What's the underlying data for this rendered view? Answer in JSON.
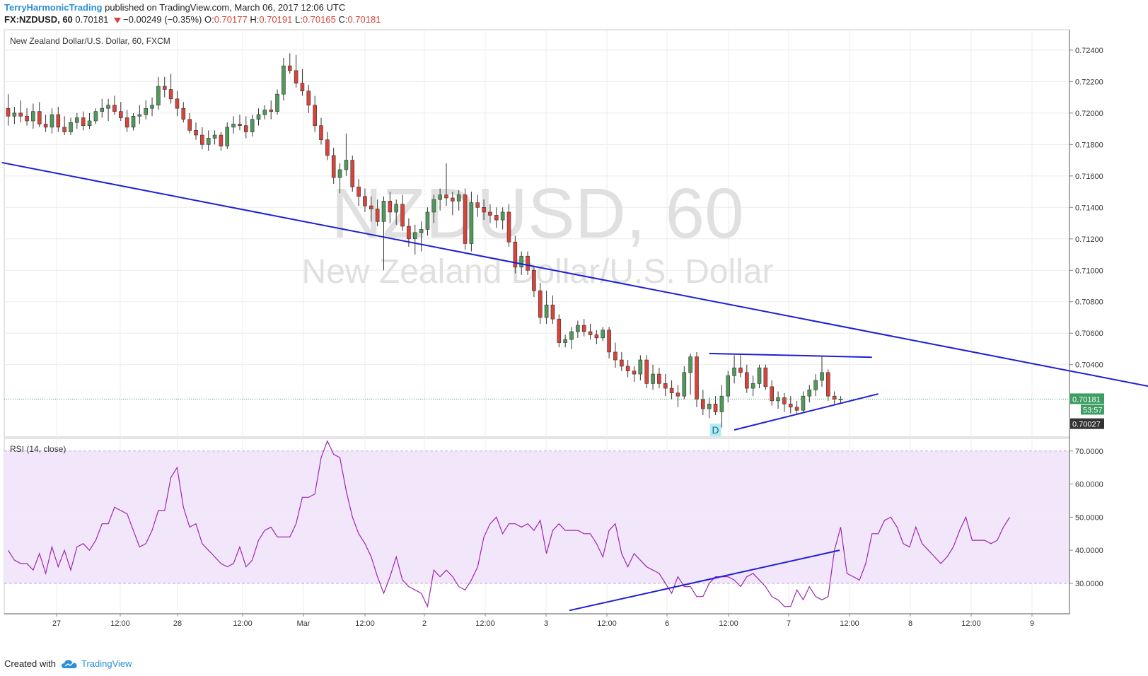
{
  "header": {
    "author": "TerryHarmonicTrading",
    "published": "published on TradingView.com, March 06, 2017 12:06 UTC",
    "symbol": "FX:NZDUSD, 60",
    "last": "0.70181",
    "change": "−0.00249 (−0.35%)",
    "o_label": "O:",
    "o": "0.70177",
    "h_label": "H:",
    "h": "0.70191",
    "l_label": "L:",
    "l": "0.70165",
    "c_label": "C:",
    "c": "0.70181"
  },
  "footer": {
    "created_with": "Created with",
    "brand": "TradingView"
  },
  "icons": {
    "change_direction": "triangle-down-icon",
    "brand_logo": "cloud-icon"
  },
  "colors": {
    "up": "#4f9a5b",
    "down": "#d9433a",
    "trendline": "#1e1ed6",
    "rsi_line": "#9c27b0",
    "rsi_band": "#f2e6fb",
    "current_price": "#3d9e63",
    "watermark": "#e0e0e0"
  },
  "chart_data": [
    {
      "type": "candlestick",
      "title": "New Zealand Dollar/U.S. Dollar, 60, FXCM",
      "watermark": {
        "symbol": "NZDUSD, 60",
        "name": "New Zealand Dollar/U.S. Dollar"
      },
      "ylim": [
        0.6994,
        0.7253
      ],
      "yticks": [
        "0.72400",
        "0.72200",
        "0.72000",
        "0.71800",
        "0.71600",
        "0.71400",
        "0.71200",
        "0.71000",
        "0.70800",
        "0.70600",
        "0.70400"
      ],
      "xtick_labels": [
        "27",
        "12:00",
        "28",
        "12:00",
        "Mar",
        "12:00",
        "2",
        "12:00",
        "3",
        "12:00",
        "6",
        "12:00",
        "7",
        "12:00",
        "8",
        "12:00",
        "9"
      ],
      "current_price": {
        "label": "0.70181",
        "value": 0.70181,
        "countdown": "53:57"
      },
      "marker_price": {
        "label": "0.70027",
        "value": 0.70027
      },
      "annotation": {
        "text": "D",
        "bar": 113
      },
      "trendlines": [
        {
          "name": "descending",
          "from": {
            "bar": -1,
            "price": 0.71685
          },
          "to": {
            "bar": 195,
            "price": 0.70163
          }
        },
        {
          "name": "triangle-top",
          "from": {
            "bar": 112,
            "price": 0.70471
          },
          "to": {
            "bar": 138,
            "price": 0.70447
          }
        },
        {
          "name": "triangle-bottom",
          "from": {
            "bar": 116,
            "price": 0.69985
          },
          "to": {
            "bar": 139,
            "price": 0.70214
          }
        }
      ],
      "ohlc": [
        [
          0.7203,
          0.7212,
          0.7192,
          0.7198
        ],
        [
          0.7198,
          0.7204,
          0.7193,
          0.72
        ],
        [
          0.72,
          0.7208,
          0.7194,
          0.7198
        ],
        [
          0.7198,
          0.7203,
          0.7192,
          0.7195
        ],
        [
          0.7195,
          0.7206,
          0.719,
          0.7201
        ],
        [
          0.7201,
          0.7207,
          0.7191,
          0.7193
        ],
        [
          0.7193,
          0.7199,
          0.7188,
          0.7191
        ],
        [
          0.7191,
          0.7203,
          0.7187,
          0.7199
        ],
        [
          0.7199,
          0.7204,
          0.7188,
          0.7191
        ],
        [
          0.7191,
          0.7198,
          0.7186,
          0.7188
        ],
        [
          0.7188,
          0.7197,
          0.7186,
          0.7194
        ],
        [
          0.7194,
          0.72,
          0.719,
          0.7197
        ],
        [
          0.7197,
          0.7201,
          0.7189,
          0.7192
        ],
        [
          0.7192,
          0.72,
          0.719,
          0.7195
        ],
        [
          0.7195,
          0.7203,
          0.7193,
          0.7201
        ],
        [
          0.7201,
          0.7209,
          0.7197,
          0.7203
        ],
        [
          0.7203,
          0.7209,
          0.7195,
          0.7205
        ],
        [
          0.7205,
          0.7211,
          0.7199,
          0.7201
        ],
        [
          0.7201,
          0.7207,
          0.7195,
          0.7197
        ],
        [
          0.7197,
          0.7202,
          0.7188,
          0.7191
        ],
        [
          0.7191,
          0.72,
          0.7189,
          0.7198
        ],
        [
          0.7198,
          0.7205,
          0.7193,
          0.7199
        ],
        [
          0.7199,
          0.7208,
          0.7196,
          0.7203
        ],
        [
          0.7203,
          0.721,
          0.7198,
          0.7205
        ],
        [
          0.7205,
          0.7223,
          0.7202,
          0.7217
        ],
        [
          0.7217,
          0.7223,
          0.721,
          0.7215
        ],
        [
          0.7215,
          0.7225,
          0.7206,
          0.7209
        ],
        [
          0.7209,
          0.7214,
          0.7198,
          0.7203
        ],
        [
          0.7203,
          0.7207,
          0.7194,
          0.7196
        ],
        [
          0.7196,
          0.72,
          0.7187,
          0.7189
        ],
        [
          0.7189,
          0.7194,
          0.7183,
          0.7186
        ],
        [
          0.7186,
          0.7191,
          0.7177,
          0.718
        ],
        [
          0.718,
          0.7189,
          0.7176,
          0.7184
        ],
        [
          0.7184,
          0.7189,
          0.718,
          0.7186
        ],
        [
          0.7186,
          0.7188,
          0.7176,
          0.7179
        ],
        [
          0.7179,
          0.7194,
          0.7177,
          0.7191
        ],
        [
          0.7191,
          0.7198,
          0.7187,
          0.7193
        ],
        [
          0.7193,
          0.7199,
          0.7189,
          0.7192
        ],
        [
          0.7192,
          0.7198,
          0.7184,
          0.7188
        ],
        [
          0.7188,
          0.7199,
          0.7185,
          0.7196
        ],
        [
          0.7196,
          0.7203,
          0.7192,
          0.7199
        ],
        [
          0.7199,
          0.7205,
          0.7196,
          0.7202
        ],
        [
          0.7202,
          0.7208,
          0.7196,
          0.7201
        ],
        [
          0.7201,
          0.7215,
          0.7199,
          0.7212
        ],
        [
          0.7212,
          0.7235,
          0.7208,
          0.723
        ],
        [
          0.723,
          0.7238,
          0.7225,
          0.7227
        ],
        [
          0.7227,
          0.7237,
          0.7216,
          0.7219
        ],
        [
          0.7219,
          0.7228,
          0.7211,
          0.7214
        ],
        [
          0.7214,
          0.7218,
          0.72,
          0.7205
        ],
        [
          0.7205,
          0.7211,
          0.7188,
          0.7192
        ],
        [
          0.7192,
          0.7197,
          0.718,
          0.7183
        ],
        [
          0.7183,
          0.7188,
          0.717,
          0.7173
        ],
        [
          0.7173,
          0.7178,
          0.7155,
          0.7159
        ],
        [
          0.7159,
          0.7168,
          0.7149,
          0.7164
        ],
        [
          0.7164,
          0.7187,
          0.716,
          0.717
        ],
        [
          0.717,
          0.7173,
          0.715,
          0.7153
        ],
        [
          0.7153,
          0.7158,
          0.7141,
          0.7147
        ],
        [
          0.7147,
          0.7152,
          0.7137,
          0.7141
        ],
        [
          0.7141,
          0.7147,
          0.7131,
          0.7139
        ],
        [
          0.7139,
          0.7145,
          0.7128,
          0.7131
        ],
        [
          0.7131,
          0.7147,
          0.71,
          0.7144
        ],
        [
          0.7144,
          0.715,
          0.713,
          0.7137
        ],
        [
          0.7137,
          0.7145,
          0.7129,
          0.7142
        ],
        [
          0.7142,
          0.7148,
          0.7125,
          0.7128
        ],
        [
          0.7128,
          0.7133,
          0.7115,
          0.712
        ],
        [
          0.712,
          0.7129,
          0.711,
          0.7124
        ],
        [
          0.7124,
          0.7131,
          0.7112,
          0.7126
        ],
        [
          0.7126,
          0.714,
          0.7122,
          0.7137
        ],
        [
          0.7137,
          0.7148,
          0.713,
          0.7145
        ],
        [
          0.7145,
          0.7152,
          0.7138,
          0.7148
        ],
        [
          0.7148,
          0.7168,
          0.7141,
          0.7146
        ],
        [
          0.7146,
          0.715,
          0.7135,
          0.7144
        ],
        [
          0.7144,
          0.7151,
          0.7138,
          0.7148
        ],
        [
          0.7148,
          0.7152,
          0.7113,
          0.7117
        ],
        [
          0.7117,
          0.715,
          0.7112,
          0.7143
        ],
        [
          0.7143,
          0.7148,
          0.7134,
          0.714
        ],
        [
          0.714,
          0.7145,
          0.7132,
          0.7137
        ],
        [
          0.7137,
          0.7142,
          0.713,
          0.7135
        ],
        [
          0.7135,
          0.714,
          0.7127,
          0.7132
        ],
        [
          0.7132,
          0.714,
          0.7126,
          0.7137
        ],
        [
          0.7137,
          0.7142,
          0.7115,
          0.7118
        ],
        [
          0.7118,
          0.7122,
          0.7098,
          0.7102
        ],
        [
          0.7102,
          0.7112,
          0.7097,
          0.7109
        ],
        [
          0.7109,
          0.7112,
          0.7097,
          0.71
        ],
        [
          0.71,
          0.7103,
          0.7083,
          0.7087
        ],
        [
          0.7087,
          0.7092,
          0.7066,
          0.707
        ],
        [
          0.707,
          0.7087,
          0.7066,
          0.7078
        ],
        [
          0.7078,
          0.7084,
          0.7066,
          0.7069
        ],
        [
          0.7069,
          0.7072,
          0.7051,
          0.7054
        ],
        [
          0.7054,
          0.7059,
          0.7051,
          0.7056
        ],
        [
          0.7056,
          0.7064,
          0.705,
          0.7061
        ],
        [
          0.7061,
          0.7068,
          0.7057,
          0.7065
        ],
        [
          0.7065,
          0.7069,
          0.7058,
          0.7061
        ],
        [
          0.7061,
          0.7066,
          0.7056,
          0.7059
        ],
        [
          0.7059,
          0.7062,
          0.7053,
          0.7057
        ],
        [
          0.7057,
          0.7064,
          0.7055,
          0.7062
        ],
        [
          0.7062,
          0.7064,
          0.7044,
          0.7048
        ],
        [
          0.7048,
          0.7054,
          0.7038,
          0.7043
        ],
        [
          0.7043,
          0.7048,
          0.7036,
          0.7039
        ],
        [
          0.7039,
          0.7043,
          0.7032,
          0.7036
        ],
        [
          0.7036,
          0.7039,
          0.7029,
          0.7034
        ],
        [
          0.7034,
          0.7046,
          0.703,
          0.7043
        ],
        [
          0.7043,
          0.7046,
          0.7025,
          0.7028
        ],
        [
          0.7028,
          0.704,
          0.7024,
          0.7034
        ],
        [
          0.7034,
          0.7038,
          0.7025,
          0.7028
        ],
        [
          0.7028,
          0.7034,
          0.702,
          0.7025
        ],
        [
          0.7025,
          0.703,
          0.7018,
          0.7022
        ],
        [
          0.7022,
          0.7027,
          0.7013,
          0.702
        ],
        [
          0.702,
          0.7039,
          0.7018,
          0.7035
        ],
        [
          0.7035,
          0.7047,
          0.7021,
          0.7045
        ],
        [
          0.7045,
          0.7048,
          0.7013,
          0.7018
        ],
        [
          0.7018,
          0.7024,
          0.7008,
          0.7012
        ],
        [
          0.7012,
          0.7019,
          0.7006,
          0.7015
        ],
        [
          0.7015,
          0.702,
          0.7008,
          0.701
        ],
        [
          0.701,
          0.7027,
          0.7,
          0.702
        ],
        [
          0.702,
          0.7036,
          0.7016,
          0.7033
        ],
        [
          0.7033,
          0.7046,
          0.7028,
          0.7038
        ],
        [
          0.7038,
          0.7046,
          0.7032,
          0.7035
        ],
        [
          0.7035,
          0.704,
          0.7022,
          0.7025
        ],
        [
          0.7025,
          0.7033,
          0.702,
          0.7028
        ],
        [
          0.7028,
          0.704,
          0.7025,
          0.7038
        ],
        [
          0.7038,
          0.704,
          0.7024,
          0.7026
        ],
        [
          0.7026,
          0.703,
          0.7014,
          0.7017
        ],
        [
          0.7017,
          0.7023,
          0.7012,
          0.7019
        ],
        [
          0.7019,
          0.7022,
          0.701,
          0.7015
        ],
        [
          0.7015,
          0.702,
          0.7009,
          0.7013
        ],
        [
          0.7013,
          0.7017,
          0.7008,
          0.7011
        ],
        [
          0.7011,
          0.7023,
          0.701,
          0.702
        ],
        [
          0.702,
          0.7027,
          0.7016,
          0.7024
        ],
        [
          0.7024,
          0.7034,
          0.702,
          0.703
        ],
        [
          0.703,
          0.7045,
          0.7026,
          0.7035
        ],
        [
          0.7035,
          0.7037,
          0.7017,
          0.702
        ],
        [
          0.702,
          0.7023,
          0.7015,
          0.7018
        ],
        [
          0.7018,
          0.702,
          0.7015,
          0.70181
        ]
      ]
    },
    {
      "type": "line",
      "title": "RSI (14, close)",
      "ylim": [
        20.8,
        73.8
      ],
      "yticks": [
        "70.0000",
        "60.0000",
        "50.0000",
        "40.0000",
        "30.0000"
      ],
      "band": [
        30,
        70
      ],
      "values": [
        40,
        37,
        36,
        36,
        34,
        39,
        33,
        41,
        35,
        40,
        34,
        41,
        42,
        40,
        43,
        48,
        48,
        53,
        52,
        51,
        46,
        41,
        42,
        46,
        52,
        52,
        62,
        65,
        53,
        47,
        48,
        42,
        40,
        38,
        36,
        35,
        36,
        41,
        35,
        37,
        43,
        46,
        47,
        44,
        44,
        44,
        48,
        56,
        56,
        57,
        68,
        73,
        69,
        68,
        58,
        50,
        45,
        42,
        38,
        32,
        27,
        32,
        38,
        31,
        29,
        28,
        27,
        23,
        34,
        32,
        34,
        32,
        29,
        28,
        31,
        35,
        44,
        48,
        50,
        45,
        48,
        48,
        47,
        48,
        46,
        49,
        39,
        46,
        48,
        46,
        46,
        46,
        45,
        45,
        42,
        38,
        46,
        48,
        39,
        35,
        39,
        37,
        35,
        34,
        33,
        30,
        27,
        32,
        29,
        29,
        26,
        26,
        30,
        32,
        32,
        32,
        31,
        29,
        32,
        33,
        31,
        29,
        26,
        25,
        23,
        23,
        28,
        25,
        29,
        26,
        25,
        26,
        40,
        47,
        33,
        32,
        31,
        36,
        45,
        45,
        49,
        50,
        47,
        42,
        41,
        47,
        42,
        40,
        38,
        36,
        38,
        41,
        46,
        50,
        43,
        43,
        43,
        42,
        43,
        47,
        50
      ]
    }
  ]
}
